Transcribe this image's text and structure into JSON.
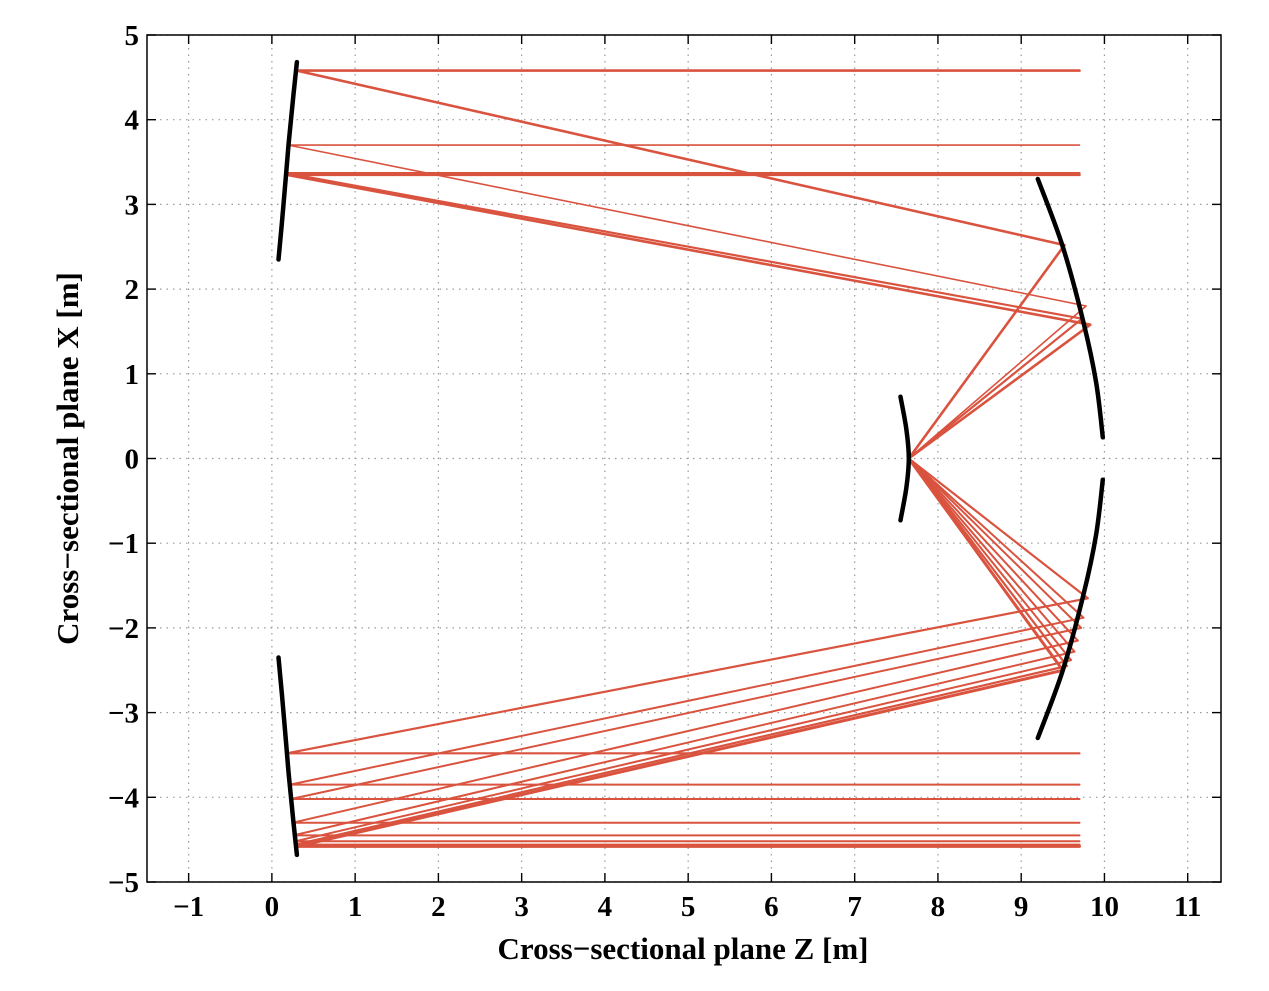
{
  "chart_data": {
    "type": "line",
    "title": "",
    "xlabel": "Cross−sectional plane Z [m]",
    "ylabel": "Cross−sectional plane X [m]",
    "xlim": [
      -1.5,
      11.4
    ],
    "ylim": [
      -5,
      5
    ],
    "xticks": [
      -1,
      0,
      1,
      2,
      3,
      4,
      5,
      6,
      7,
      8,
      9,
      10,
      11
    ],
    "yticks": [
      -5,
      -4,
      -3,
      -2,
      -1,
      0,
      1,
      2,
      3,
      4,
      5
    ],
    "xtick_labels": [
      "−1",
      "0",
      "1",
      "2",
      "3",
      "4",
      "5",
      "6",
      "7",
      "8",
      "9",
      "10",
      "11"
    ],
    "ytick_labels": [
      "−5",
      "−4",
      "−3",
      "−2",
      "−1",
      "0",
      "1",
      "2",
      "3",
      "4",
      "5"
    ],
    "grid": true,
    "colors": {
      "rays": "#d9533f",
      "mirrors": "#000000"
    },
    "mirrors": [
      {
        "x": [
          0.08,
          0.14,
          0.2,
          0.26,
          0.3
        ],
        "y": [
          2.35,
          3.0,
          3.7,
          4.3,
          4.68
        ]
      },
      {
        "x": [
          0.08,
          0.14,
          0.2,
          0.26,
          0.3
        ],
        "y": [
          -2.35,
          -3.0,
          -3.7,
          -4.3,
          -4.68
        ]
      },
      {
        "x": [
          9.2,
          9.5,
          9.75,
          9.9,
          9.98
        ],
        "y": [
          3.3,
          2.5,
          1.6,
          0.9,
          0.25
        ]
      },
      {
        "x": [
          9.98,
          9.9,
          9.75,
          9.5,
          9.2
        ],
        "y": [
          -0.25,
          -0.9,
          -1.6,
          -2.5,
          -3.3
        ]
      },
      {
        "x": [
          7.55,
          7.62,
          7.65,
          7.62,
          7.55
        ],
        "y": [
          0.73,
          0.35,
          0.0,
          -0.35,
          -0.73
        ]
      }
    ],
    "series": [
      {
        "width": 2.6,
        "x": [
          9.7,
          0.3,
          9.52,
          7.65
        ],
        "y": [
          4.58,
          4.58,
          2.52,
          0.0
        ]
      },
      {
        "width": 1.6,
        "x": [
          9.7,
          0.2,
          9.78,
          7.65
        ],
        "y": [
          3.7,
          3.7,
          1.8,
          0.0
        ]
      },
      {
        "width": 2.6,
        "x": [
          9.7,
          0.18,
          9.83,
          7.65
        ],
        "y": [
          3.35,
          3.35,
          1.58,
          0.0
        ]
      },
      {
        "width": 2.2,
        "x": [
          9.7,
          0.17,
          9.73,
          7.65
        ],
        "y": [
          3.37,
          3.37,
          1.65,
          0.0
        ]
      },
      {
        "width": 2.2,
        "x": [
          7.65,
          9.8,
          0.18,
          9.7
        ],
        "y": [
          0.0,
          -1.65,
          -3.48,
          -3.48
        ]
      },
      {
        "width": 2.0,
        "x": [
          7.65,
          9.75,
          0.22,
          9.7
        ],
        "y": [
          0.0,
          -1.88,
          -3.85,
          -3.85
        ]
      },
      {
        "width": 2.0,
        "x": [
          7.65,
          9.72,
          0.23,
          9.7
        ],
        "y": [
          0.0,
          -2.0,
          -4.02,
          -4.02
        ]
      },
      {
        "width": 2.0,
        "x": [
          7.65,
          9.68,
          0.25,
          9.7
        ],
        "y": [
          0.0,
          -2.15,
          -4.3,
          -4.3
        ]
      },
      {
        "width": 2.0,
        "x": [
          7.65,
          9.64,
          0.26,
          9.7
        ],
        "y": [
          0.0,
          -2.28,
          -4.45,
          -4.45
        ]
      },
      {
        "width": 2.0,
        "x": [
          7.65,
          9.6,
          0.28,
          9.7
        ],
        "y": [
          0.0,
          -2.38,
          -4.52,
          -4.52
        ]
      },
      {
        "width": 2.2,
        "x": [
          7.65,
          9.55,
          0.28,
          9.7
        ],
        "y": [
          0.0,
          -2.45,
          -4.56,
          -4.56
        ]
      },
      {
        "width": 3.0,
        "x": [
          7.65,
          9.5,
          0.3,
          9.7
        ],
        "y": [
          0.0,
          -2.5,
          -4.58,
          -4.58
        ]
      }
    ]
  }
}
